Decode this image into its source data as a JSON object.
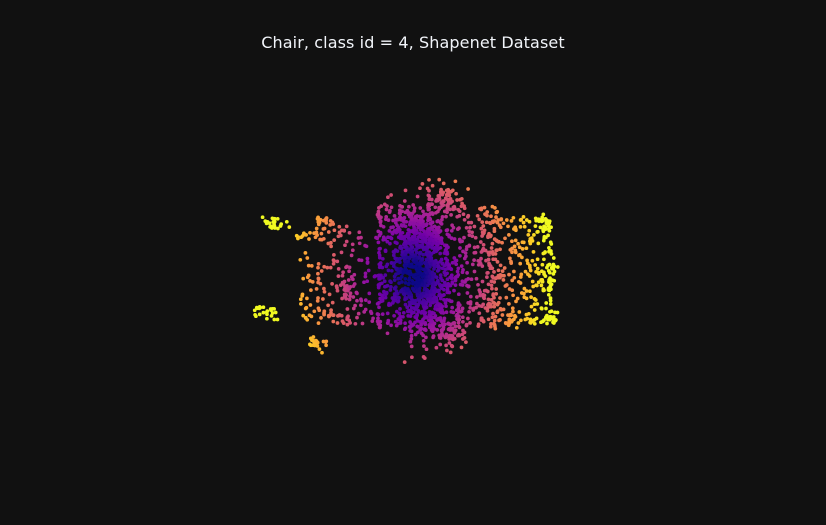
{
  "chart_data": {
    "type": "scatter",
    "title": "Chair, class id = 4,  Shapenet Dataset",
    "colorscale": [
      "#0d0887",
      "#46039f",
      "#7201a8",
      "#9c179e",
      "#bd3786",
      "#d8576b",
      "#ed7953",
      "#fb9f3a",
      "#fdca26",
      "#f0f921"
    ],
    "background_color": "#111111",
    "title_color": "#f2f5fa",
    "marker_size": 3,
    "showlegend": false,
    "axes_visible": false,
    "point_count": 2000
  }
}
